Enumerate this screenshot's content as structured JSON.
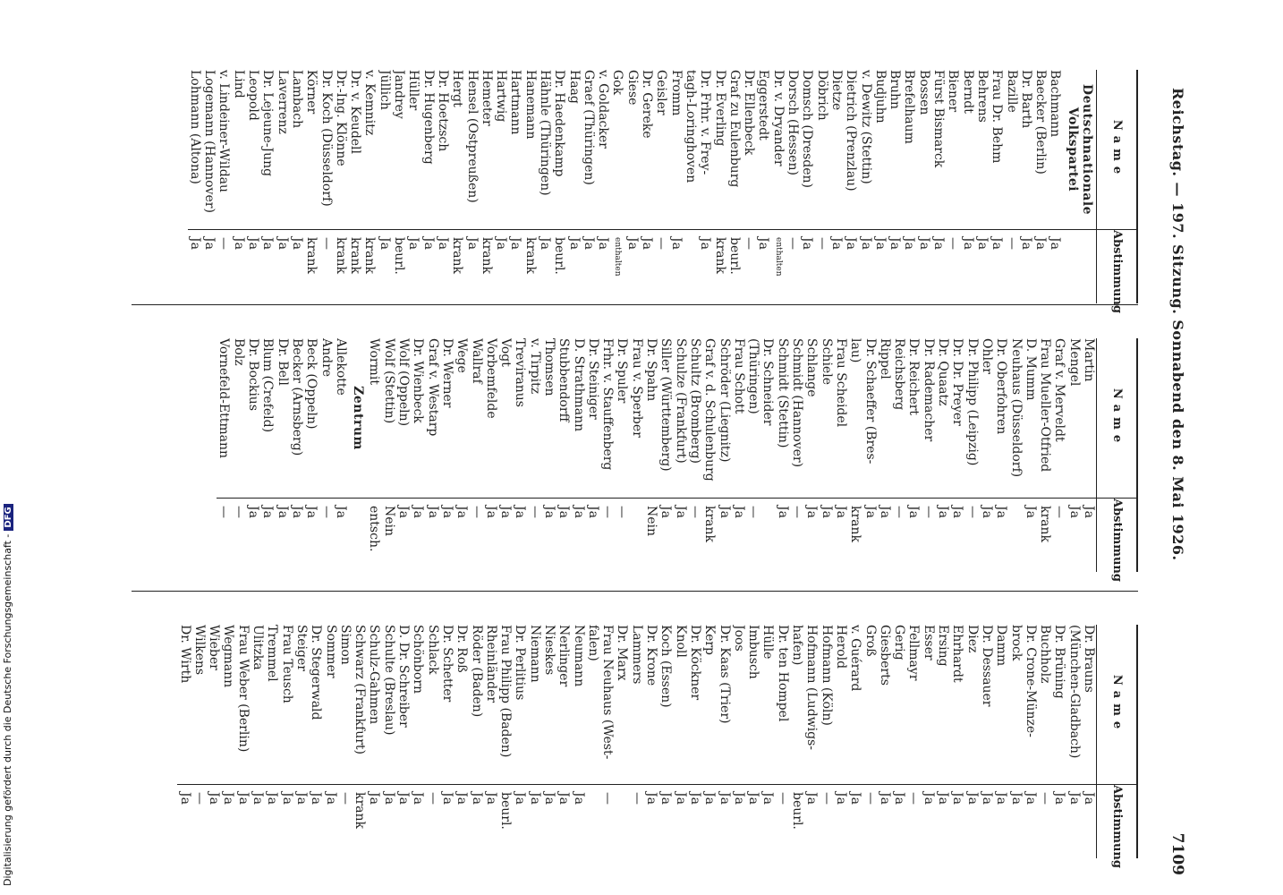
{
  "header": {
    "title": "Reichstag. — 197. Sitzung. Sonnabend den 8. Mai 1926.",
    "page_number": "7109"
  },
  "table_headers": {
    "name": "Name",
    "vote": "Abstimmung"
  },
  "side_note": {
    "text": "Digitalisierung gefördert durch die Deutsche Forschungsgemeinschaft -",
    "badge": "DFG"
  },
  "columns": [
    {
      "rows": [
        {
          "type": "party",
          "text": "Deutschnationale Volkspartei"
        },
        {
          "name": "Bachmann",
          "vote": "Ja"
        },
        {
          "name": "Baecker (Berlin)",
          "vote": "Ja"
        },
        {
          "name": "Dr. Barth",
          "vote": "Ja"
        },
        {
          "name": "Bazille",
          "vote": "—"
        },
        {
          "name": "Frau Dr. Behm",
          "vote": "Ja"
        },
        {
          "name": "Behrens",
          "vote": "Ja"
        },
        {
          "name": "Berndt",
          "vote": "Ja"
        },
        {
          "name": "Biener",
          "vote": "—"
        },
        {
          "name": "Fürst Bismarck",
          "vote": "Ja"
        },
        {
          "name": "Bossen",
          "vote": "Ja"
        },
        {
          "name": "Brefelhaum",
          "vote": "Ja"
        },
        {
          "name": "Bruhn",
          "vote": "Ja"
        },
        {
          "name": "Budjuhn",
          "vote": "Ja"
        },
        {
          "name": "v. Dewitz (Stettin)",
          "vote": "Ja"
        },
        {
          "name": "Dietrich (Prenzlau)",
          "vote": "Ja"
        },
        {
          "name": "Dietze",
          "vote": "Ja"
        },
        {
          "name": "Döbrich",
          "vote": "—"
        },
        {
          "name": "Domsch (Dresden)",
          "vote": "Ja"
        },
        {
          "name": "Dorsch (Hessen)",
          "vote": "—"
        },
        {
          "name": "Dr. v. Dryander",
          "vote": "enthalten"
        },
        {
          "name": "Eggerstedt",
          "vote": "Ja"
        },
        {
          "name": "Dr. Ellenbeck",
          "vote": "—"
        },
        {
          "name": "Graf zu Eulenburg",
          "vote": "beurl."
        },
        {
          "name": "Dr. Everling",
          "vote": "krank"
        },
        {
          "name": "Dr. Frhr. v. Frey-",
          "vote": "Ja"
        },
        {
          "name": "tagh-Loringhoven",
          "vote": ""
        },
        {
          "name": "Fromm",
          "vote": "Ja"
        },
        {
          "name": "Geisler",
          "vote": "—"
        },
        {
          "name": "Dr. Gereke",
          "vote": "Ja"
        },
        {
          "name": "Giese",
          "vote": "Ja"
        },
        {
          "name": "Gok",
          "vote": "enthalten"
        },
        {
          "name": "v. Goldacker",
          "vote": "Ja"
        },
        {
          "name": "Graef (Thüringen)",
          "vote": "Ja"
        },
        {
          "name": "Haag",
          "vote": "Ja"
        },
        {
          "name": "Dr. Haedenkamp",
          "vote": "beurl."
        },
        {
          "name": "Hähnle (Thüringen)",
          "vote": "Ja"
        },
        {
          "name": "Hanemann",
          "vote": "krank"
        },
        {
          "name": "Hartmann",
          "vote": "Ja"
        },
        {
          "name": "Hartwig",
          "vote": "Ja"
        },
        {
          "name": "Hemeter",
          "vote": "krank"
        },
        {
          "name": "Hensel (Ostpreußen)",
          "vote": "Ja"
        },
        {
          "name": "Hergt",
          "vote": "krank"
        },
        {
          "name": "Dr. Hoetzsch",
          "vote": "Ja"
        },
        {
          "name": "Dr. Hugenberg",
          "vote": "Ja"
        },
        {
          "name": "Hüller",
          "vote": "Ja"
        },
        {
          "name": "Jandrey",
          "vote": "beurl."
        },
        {
          "name": "Jüllich",
          "vote": "Ja"
        },
        {
          "name": "v. Kemnitz",
          "vote": "krank"
        },
        {
          "name": "Dr. v. Keudell",
          "vote": "krank"
        },
        {
          "name": "Dr.-Ing. Klönne",
          "vote": "krank"
        },
        {
          "name": "Dr. Koch (Düsseldorf)",
          "vote": "—"
        },
        {
          "name": "Körner",
          "vote": "krank"
        },
        {
          "name": "Lambach",
          "vote": "Ja"
        },
        {
          "name": "Laverrenz",
          "vote": "Ja"
        },
        {
          "name": "Dr. Lejeune-Jung",
          "vote": "Ja"
        },
        {
          "name": "Leopold",
          "vote": "Ja"
        },
        {
          "name": "Lind",
          "vote": "Ja"
        },
        {
          "name": "v. Lindeiner-Wildau",
          "vote": "—"
        },
        {
          "name": "Logemann (Hannover)",
          "vote": "Ja"
        },
        {
          "name": "Lohmann (Altona)",
          "vote": "Ja"
        }
      ]
    },
    {
      "rows": [
        {
          "name": "Martin",
          "vote": "Ja"
        },
        {
          "name": "Mengel",
          "vote": "Ja"
        },
        {
          "name": "Graf v. Merveldt",
          "vote": "—"
        },
        {
          "name": "Frau Mueller-Otfried",
          "vote": "krank"
        },
        {
          "name": "D. Mumm",
          "vote": "Ja"
        },
        {
          "name": "Neuhaus (Düsseldorf)",
          "vote": ""
        },
        {
          "name": "Dr. Oberfohren",
          "vote": "Ja"
        },
        {
          "name": "Ohler",
          "vote": "Ja"
        },
        {
          "name": "Dr. Philipp (Leipzig)",
          "vote": "—"
        },
        {
          "name": "Dr. Dr. Preyer",
          "vote": "Ja"
        },
        {
          "name": "Dr. Quaatz",
          "vote": "Ja"
        },
        {
          "name": "Dr. Rademacher",
          "vote": "—"
        },
        {
          "name": "Dr. Reichert",
          "vote": "Ja"
        },
        {
          "name": "Reichsberg",
          "vote": "—"
        },
        {
          "name": "Rippel",
          "vote": "Ja"
        },
        {
          "name": "Dr. Schaeffer (Bres-",
          "vote": "Ja"
        },
        {
          "name": "lau)",
          "vote": "krank"
        },
        {
          "name": "Frau Scheidel",
          "vote": "Ja"
        },
        {
          "name": "Schiele",
          "vote": "Ja"
        },
        {
          "name": "Schlange",
          "vote": "Ja"
        },
        {
          "name": "Schmidt (Hannover)",
          "vote": "—"
        },
        {
          "name": "Schmidt (Stettin)",
          "vote": "Ja"
        },
        {
          "name": "Dr. Schneider",
          "vote": ""
        },
        {
          "name": "(Thüringen)",
          "vote": "—"
        },
        {
          "name": "Frau Schott",
          "vote": "Ja"
        },
        {
          "name": "Schröder (Liegnitz)",
          "vote": "Ja"
        },
        {
          "name": "Graf v. d. Schulenburg",
          "vote": "krank"
        },
        {
          "name": "Schultz (Bromberg)",
          "vote": "—"
        },
        {
          "name": "Schulze (Frankfurt)",
          "vote": "Ja"
        },
        {
          "name": "Siller (Württemberg)",
          "vote": "Ja"
        },
        {
          "name": "Dr. Spahn",
          "vote": "Nein"
        },
        {
          "name": "Frau v. Sperber",
          "vote": ""
        },
        {
          "name": "Dr. Spuler",
          "vote": "—"
        },
        {
          "name": "Frhr. v. Stauffenberg",
          "vote": "—"
        },
        {
          "name": "Dr. Steiniger",
          "vote": "Ja"
        },
        {
          "name": "D. Strathmann",
          "vote": "Ja"
        },
        {
          "name": "Stubbendorff",
          "vote": "Ja"
        },
        {
          "name": "Thomsen",
          "vote": "Ja"
        },
        {
          "name": "v. Tirpitz",
          "vote": "—"
        },
        {
          "name": "Treviranus",
          "vote": "Ja"
        },
        {
          "name": "Vogt",
          "vote": "Ja"
        },
        {
          "name": "Vorbemfelde",
          "vote": "Ja"
        },
        {
          "name": "Wallraf",
          "vote": "—"
        },
        {
          "name": "Wege",
          "vote": "Ja"
        },
        {
          "name": "Dr. Werner",
          "vote": "Ja"
        },
        {
          "name": "Graf v. Westarp",
          "vote": "Ja"
        },
        {
          "name": "Dr. Wienbeck",
          "vote": "Ja"
        },
        {
          "name": "Wolf (Oppeln)",
          "vote": "Ja"
        },
        {
          "name": "Wolf (Stettin)",
          "vote": "Nein"
        },
        {
          "name": "Wormit",
          "vote": "entsch."
        },
        {
          "type": "party",
          "text": "Zentrum"
        },
        {
          "name": "Allekotte",
          "vote": "Ja"
        },
        {
          "name": "Andre",
          "vote": "—"
        },
        {
          "name": "Beck (Oppeln)",
          "vote": "Ja"
        },
        {
          "name": "Becker (Arnsberg)",
          "vote": "Ja"
        },
        {
          "name": "Dr. Bell",
          "vote": "Ja"
        },
        {
          "name": "Blum (Crefeld)",
          "vote": "Ja"
        },
        {
          "name": "Dr. Bockius",
          "vote": "Ja"
        },
        {
          "name": "Bolz",
          "vote": "—"
        },
        {
          "name": "Vornefeld-Ettmann",
          "vote": "—"
        }
      ]
    },
    {
      "rows": [
        {
          "name": "Dr. Brauns",
          "vote": "Ja"
        },
        {
          "name": "(München-Gladbach)",
          "vote": "Ja"
        },
        {
          "name": "Dr. Brüning",
          "vote": "Ja"
        },
        {
          "name": "Buchholz",
          "vote": "—"
        },
        {
          "name": "Dr. Crone-Münze-",
          "vote": "Ja"
        },
        {
          "name": "brock",
          "vote": "Ja"
        },
        {
          "name": "Damm",
          "vote": "Ja"
        },
        {
          "name": "Dr. Dessauer",
          "vote": "Ja"
        },
        {
          "name": "Diez",
          "vote": "Ja"
        },
        {
          "name": "Ehrhardt",
          "vote": "Ja"
        },
        {
          "name": "Ersing",
          "vote": "Ja"
        },
        {
          "name": "Esser",
          "vote": "Ja"
        },
        {
          "name": "Fellmayr",
          "vote": "—"
        },
        {
          "name": "Gerig",
          "vote": "Ja"
        },
        {
          "name": "Giesberts",
          "vote": "Ja"
        },
        {
          "name": "Groß",
          "vote": "—"
        },
        {
          "name": "v. Guérard",
          "vote": "Ja"
        },
        {
          "name": "Herold",
          "vote": "Ja"
        },
        {
          "name": "Hofmann (Köln)",
          "vote": "—"
        },
        {
          "name": "Hofmann (Ludwigs-",
          "vote": "Ja"
        },
        {
          "name": "hafen)",
          "vote": "beurl."
        },
        {
          "name": "Dr. ten Hompel",
          "vote": "—"
        },
        {
          "name": "Hülle",
          "vote": "Ja"
        },
        {
          "name": "Imbusch",
          "vote": "Ja"
        },
        {
          "name": "Joos",
          "vote": "Ja"
        },
        {
          "name": "Dr. Kaas (Trier)",
          "vote": "Ja"
        },
        {
          "name": "Kerp",
          "vote": "Ja"
        },
        {
          "name": "Dr. Köckner",
          "vote": "Ja"
        },
        {
          "name": "Knoll",
          "vote": "Ja"
        },
        {
          "name": "Koch (Essen)",
          "vote": "Ja"
        },
        {
          "name": "Dr. Krone",
          "vote": "Ja"
        },
        {
          "name": "Lammers",
          "vote": "—"
        },
        {
          "name": "Dr. Marx",
          "vote": ""
        },
        {
          "name": "Frau Neuhaus (West-",
          "vote": "—"
        },
        {
          "name": "falen)",
          "vote": ""
        },
        {
          "name": "Neumann",
          "vote": "Ja"
        },
        {
          "name": "Nerlinger",
          "vote": "Ja"
        },
        {
          "name": "Nieskes",
          "vote": "Ja"
        },
        {
          "name": "Niemann",
          "vote": "Ja"
        },
        {
          "name": "Dr. Perlitius",
          "vote": "Ja"
        },
        {
          "name": "Frau Philipp (Baden)",
          "vote": "beurl."
        },
        {
          "name": "Rheinländer",
          "vote": "Ja"
        },
        {
          "name": "Röder (Baden)",
          "vote": "Ja"
        },
        {
          "name": "Dr. Roß",
          "vote": "Ja"
        },
        {
          "name": "Dr. Schetter",
          "vote": "Ja"
        },
        {
          "name": "Schlack",
          "vote": "—"
        },
        {
          "name": "Schönborn",
          "vote": "Ja"
        },
        {
          "name": "D. Dr. Schreiber",
          "vote": "Ja"
        },
        {
          "name": "Schulte (Breslau)",
          "vote": "Ja"
        },
        {
          "name": "Schulz-Gahmen",
          "vote": "Ja"
        },
        {
          "name": "Schwarz (Frankfurt)",
          "vote": "krank"
        },
        {
          "name": "Simon",
          "vote": "—"
        },
        {
          "name": "Sommer",
          "vote": "Ja"
        },
        {
          "name": "Dr. Stegerwald",
          "vote": "Ja"
        },
        {
          "name": "Steiger",
          "vote": "Ja"
        },
        {
          "name": "Frau Teusch",
          "vote": "Ja"
        },
        {
          "name": "Tremmel",
          "vote": "Ja"
        },
        {
          "name": "Ulitzka",
          "vote": "Ja"
        },
        {
          "name": "Frau Weber (Berlin)",
          "vote": "Ja"
        },
        {
          "name": "Wegmann",
          "vote": "Ja"
        },
        {
          "name": "Wieber",
          "vote": "Ja"
        },
        {
          "name": "Wilkens",
          "vote": "—"
        },
        {
          "name": "Dr. Wirth",
          "vote": "Ja"
        }
      ]
    }
  ]
}
